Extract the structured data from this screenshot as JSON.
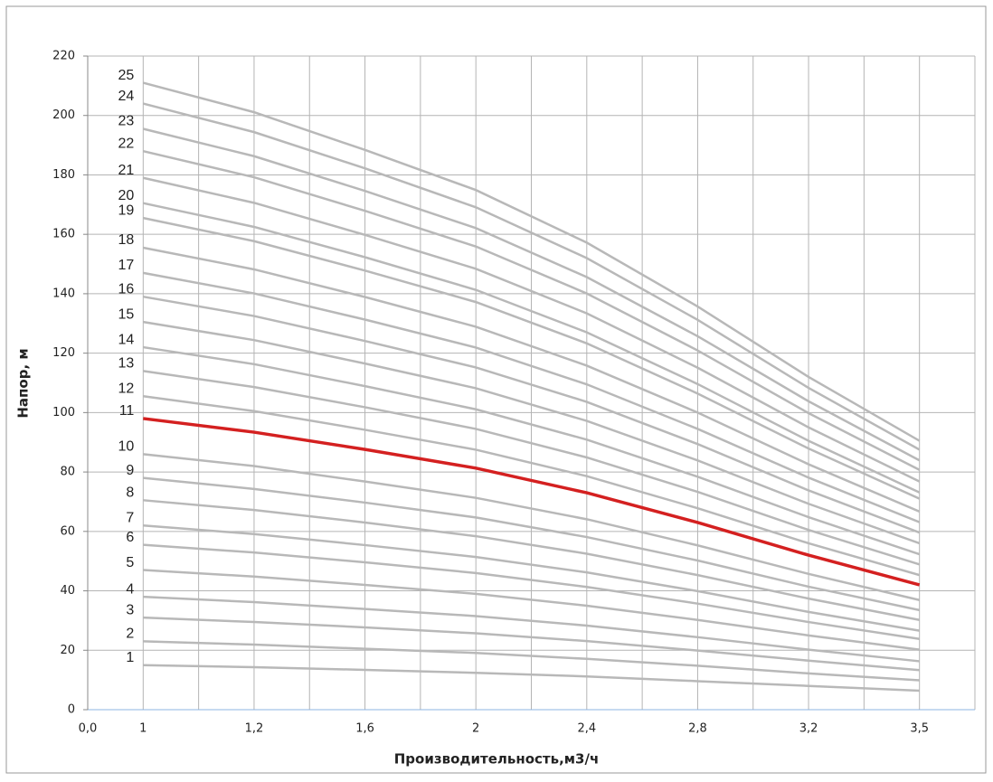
{
  "chart_data": {
    "type": "line",
    "x_label": "Производительность,м3/ч",
    "y_label": "Напор, м",
    "categories": [
      "0,0",
      "1",
      "1,2",
      "1,6",
      "2",
      "2,4",
      "2,8",
      "3,2",
      "3,5"
    ],
    "ylim": [
      0,
      220
    ],
    "yticks": [
      0,
      20,
      40,
      60,
      80,
      100,
      120,
      140,
      160,
      180,
      200,
      220
    ],
    "grid": true,
    "series": [
      {
        "name": "1",
        "color": "#b8b8b8",
        "values": [
          null,
          15,
          14.3,
          13.4,
          12.4,
          11.2,
          9.6,
          8.0,
          6.4
        ]
      },
      {
        "name": "2",
        "color": "#b8b8b8",
        "values": [
          null,
          23,
          21.9,
          20.5,
          19.1,
          17.1,
          14.8,
          12.2,
          9.9
        ]
      },
      {
        "name": "3",
        "color": "#b8b8b8",
        "values": [
          null,
          31,
          29.5,
          27.7,
          25.7,
          23.1,
          19.9,
          16.5,
          13.3
        ]
      },
      {
        "name": "4",
        "color": "#b8b8b8",
        "values": [
          null,
          38,
          36.2,
          33.9,
          31.5,
          28.3,
          24.4,
          20.2,
          16.3
        ]
      },
      {
        "name": "5",
        "color": "#b8b8b8",
        "values": [
          null,
          47,
          44.8,
          42.0,
          39.0,
          35.0,
          30.2,
          25.0,
          20.2
        ]
      },
      {
        "name": "6",
        "color": "#b8b8b8",
        "values": [
          null,
          55.5,
          52.9,
          49.6,
          46.0,
          41.3,
          35.7,
          29.5,
          23.8
        ]
      },
      {
        "name": "7",
        "color": "#b8b8b8",
        "values": [
          null,
          62,
          59.1,
          55.4,
          51.4,
          46.2,
          39.9,
          32.9,
          26.6
        ]
      },
      {
        "name": "8",
        "color": "#b8b8b8",
        "values": [
          null,
          70.5,
          67.2,
          63.0,
          58.4,
          52.5,
          45.3,
          37.4,
          30.2
        ]
      },
      {
        "name": "9",
        "color": "#b8b8b8",
        "values": [
          null,
          78,
          74.3,
          69.7,
          64.7,
          58.1,
          50.2,
          41.4,
          33.5
        ]
      },
      {
        "name": "10",
        "color": "#b8b8b8",
        "values": [
          null,
          86,
          82.0,
          76.8,
          71.3,
          64.1,
          55.3,
          45.7,
          36.9
        ]
      },
      {
        "name": "11",
        "color": "#d42020",
        "values": [
          null,
          98,
          93.4,
          87.6,
          81.3,
          73,
          63,
          52,
          42
        ]
      },
      {
        "name": "12",
        "color": "#b8b8b8",
        "values": [
          null,
          105.5,
          100.5,
          94.2,
          87.5,
          78.6,
          67.8,
          56.0,
          45.3
        ]
      },
      {
        "name": "13",
        "color": "#b8b8b8",
        "values": [
          null,
          114,
          108.6,
          101.8,
          94.5,
          84.9,
          73.3,
          60.5,
          48.9
        ]
      },
      {
        "name": "14",
        "color": "#b8b8b8",
        "values": [
          null,
          122,
          116.3,
          108.9,
          101.1,
          90.9,
          78.4,
          64.8,
          52.3
        ]
      },
      {
        "name": "15",
        "color": "#b8b8b8",
        "values": [
          null,
          130.5,
          124.4,
          116.5,
          108.2,
          97.2,
          83.9,
          69.3,
          56.0
        ]
      },
      {
        "name": "16",
        "color": "#b8b8b8",
        "values": [
          null,
          139,
          132.5,
          124.1,
          115.2,
          103.6,
          89.4,
          73.8,
          59.6
        ]
      },
      {
        "name": "17",
        "color": "#b8b8b8",
        "values": [
          null,
          147,
          140.1,
          131.3,
          121.9,
          109.5,
          94.5,
          78.1,
          63.1
        ]
      },
      {
        "name": "18",
        "color": "#b8b8b8",
        "values": [
          null,
          155.5,
          148.2,
          138.9,
          128.9,
          115.8,
          100.0,
          82.6,
          66.7
        ]
      },
      {
        "name": "19",
        "color": "#b8b8b8",
        "values": [
          null,
          165.5,
          157.7,
          147.8,
          137.2,
          123.3,
          106.4,
          87.9,
          71.0
        ]
      },
      {
        "name": "20",
        "color": "#b8b8b8",
        "values": [
          null,
          170.5,
          162.5,
          152.3,
          141.3,
          127.0,
          109.6,
          90.5,
          73.1
        ]
      },
      {
        "name": "21",
        "color": "#b8b8b8",
        "values": [
          null,
          179,
          170.6,
          159.8,
          148.4,
          133.4,
          115.1,
          95.0,
          76.8
        ]
      },
      {
        "name": "22",
        "color": "#b8b8b8",
        "values": [
          null,
          188,
          179.2,
          167.9,
          155.9,
          140.1,
          120.9,
          99.8,
          80.7
        ]
      },
      {
        "name": "23",
        "color": "#b8b8b8",
        "values": [
          null,
          195.5,
          186.3,
          174.6,
          162.1,
          145.6,
          125.7,
          103.8,
          83.9
        ]
      },
      {
        "name": "24",
        "color": "#b8b8b8",
        "values": [
          null,
          204,
          194.4,
          182.2,
          169.1,
          152.0,
          131.2,
          108.3,
          87.5
        ]
      },
      {
        "name": "25",
        "color": "#b8b8b8",
        "values": [
          null,
          211,
          201.1,
          188.4,
          174.9,
          157.2,
          135.7,
          112.0,
          90.5
        ]
      }
    ]
  }
}
